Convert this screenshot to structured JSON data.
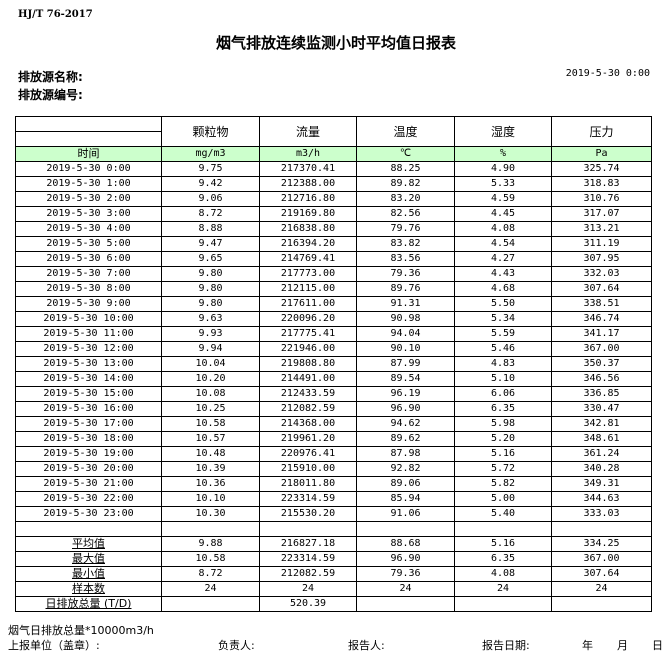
{
  "standard": "HJ/T  76-2017",
  "title": "烟气排放连续监测小时平均值日报表",
  "source_name_label": "排放源名称:",
  "source_id_label": "排放源编号:",
  "report_datetime": "2019-5-30 0:00",
  "columns": [
    {
      "name": "颗粒物",
      "unit": "mg/m3"
    },
    {
      "name": "流量",
      "unit": "m3/h"
    },
    {
      "name": "温度",
      "unit": "℃"
    },
    {
      "name": "湿度",
      "unit": "%"
    },
    {
      "name": "压力",
      "unit": "Pa"
    }
  ],
  "time_header": "时间",
  "rows": [
    [
      "2019-5-30 0:00",
      "9.75",
      "217370.41",
      "88.25",
      "4.90",
      "325.74"
    ],
    [
      "2019-5-30 1:00",
      "9.42",
      "212388.00",
      "89.82",
      "5.33",
      "318.83"
    ],
    [
      "2019-5-30 2:00",
      "9.06",
      "212716.80",
      "83.20",
      "4.59",
      "310.76"
    ],
    [
      "2019-5-30 3:00",
      "8.72",
      "219169.80",
      "82.56",
      "4.45",
      "317.07"
    ],
    [
      "2019-5-30 4:00",
      "8.88",
      "216838.80",
      "79.76",
      "4.08",
      "313.21"
    ],
    [
      "2019-5-30 5:00",
      "9.47",
      "216394.20",
      "83.82",
      "4.54",
      "311.19"
    ],
    [
      "2019-5-30 6:00",
      "9.65",
      "214769.41",
      "83.56",
      "4.27",
      "307.95"
    ],
    [
      "2019-5-30 7:00",
      "9.80",
      "217773.00",
      "79.36",
      "4.43",
      "332.03"
    ],
    [
      "2019-5-30 8:00",
      "9.80",
      "212115.00",
      "89.76",
      "4.68",
      "307.64"
    ],
    [
      "2019-5-30 9:00",
      "9.80",
      "217611.00",
      "91.31",
      "5.50",
      "338.51"
    ],
    [
      "2019-5-30 10:00",
      "9.63",
      "220096.20",
      "90.98",
      "5.34",
      "346.74"
    ],
    [
      "2019-5-30 11:00",
      "9.93",
      "217775.41",
      "94.04",
      "5.59",
      "341.17"
    ],
    [
      "2019-5-30 12:00",
      "9.94",
      "221946.00",
      "90.10",
      "5.46",
      "367.00"
    ],
    [
      "2019-5-30 13:00",
      "10.04",
      "219808.80",
      "87.99",
      "4.83",
      "350.37"
    ],
    [
      "2019-5-30 14:00",
      "10.20",
      "214491.00",
      "89.54",
      "5.10",
      "346.56"
    ],
    [
      "2019-5-30 15:00",
      "10.08",
      "212433.59",
      "96.19",
      "6.06",
      "336.85"
    ],
    [
      "2019-5-30 16:00",
      "10.25",
      "212082.59",
      "96.90",
      "6.35",
      "330.47"
    ],
    [
      "2019-5-30 17:00",
      "10.58",
      "214368.00",
      "94.62",
      "5.98",
      "342.81"
    ],
    [
      "2019-5-30 18:00",
      "10.57",
      "219961.20",
      "89.62",
      "5.20",
      "348.61"
    ],
    [
      "2019-5-30 19:00",
      "10.48",
      "220976.41",
      "87.98",
      "5.16",
      "361.24"
    ],
    [
      "2019-5-30 20:00",
      "10.39",
      "215910.00",
      "92.82",
      "5.72",
      "340.28"
    ],
    [
      "2019-5-30 21:00",
      "10.36",
      "218011.80",
      "89.06",
      "5.82",
      "349.31"
    ],
    [
      "2019-5-30 22:00",
      "10.10",
      "223314.59",
      "85.94",
      "5.00",
      "344.63"
    ],
    [
      "2019-5-30 23:00",
      "10.30",
      "215530.20",
      "91.06",
      "5.40",
      "333.03"
    ]
  ],
  "summary": [
    [
      "平均值",
      "9.88",
      "216827.18",
      "88.68",
      "5.16",
      "334.25"
    ],
    [
      "最大值",
      "10.58",
      "223314.59",
      "96.90",
      "6.35",
      "367.00"
    ],
    [
      "最小值",
      "8.72",
      "212082.59",
      "79.36",
      "4.08",
      "307.64"
    ],
    [
      "样本数",
      "24",
      "24",
      "24",
      "24",
      "24"
    ],
    [
      "日排放总量 (T/D)",
      "",
      "520.39",
      "",
      "",
      ""
    ]
  ],
  "footer": {
    "note": "烟气日排放总量*10000m3/h",
    "unit_label": "上报单位（盖章）:",
    "responsible_label": "负责人:",
    "reporter_label": "报告人:",
    "report_date_label": "报告日期:",
    "year": "年",
    "month": "月",
    "day": "日"
  }
}
